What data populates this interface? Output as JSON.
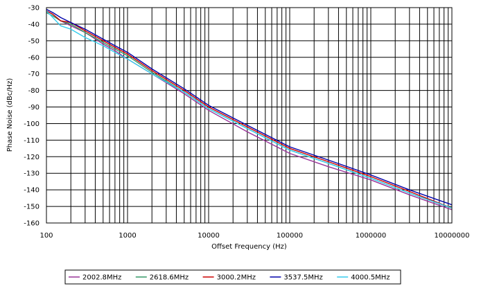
{
  "chart_data": {
    "type": "line",
    "title": "",
    "xlabel": "Offset Frequency (Hz)",
    "ylabel": "Phase Noise (dBc/Hz)",
    "xscale": "log",
    "xlim": [
      100,
      10000000
    ],
    "ylim": [
      -160,
      -30
    ],
    "grid": true,
    "legend_position": "bottom",
    "x_tick_labels": [
      "100",
      "1000",
      "10000",
      "100000",
      "1000000",
      "10000000"
    ],
    "y_tick_labels": [
      "-30",
      "-40",
      "-50",
      "-60",
      "-70",
      "-80",
      "-90",
      "-100",
      "-110",
      "-120",
      "-130",
      "-140",
      "-150",
      "-160"
    ],
    "series": [
      {
        "name": "2002.8MHz",
        "color": "#993399",
        "x": [
          100,
          120,
          150,
          200,
          300,
          500,
          700,
          1000,
          2000,
          5000,
          10000,
          30000,
          100000,
          300000,
          1000000,
          3000000,
          10000000
        ],
        "y": [
          -32,
          -34,
          -38,
          -41,
          -45,
          -52,
          -56,
          -61,
          -70,
          -82,
          -92,
          -105,
          -118,
          -126,
          -134,
          -143,
          -152
        ]
      },
      {
        "name": "2618.6MHz",
        "color": "#339966",
        "x": [
          100,
          120,
          150,
          200,
          300,
          500,
          700,
          1000,
          2000,
          5000,
          10000,
          30000,
          100000,
          300000,
          1000000,
          3000000,
          10000000
        ],
        "y": [
          -33,
          -35,
          -38,
          -40,
          -45,
          -51,
          -55,
          -59,
          -69,
          -81,
          -91,
          -103,
          -116,
          -124,
          -133,
          -142,
          -151
        ]
      },
      {
        "name": "3000.2MHz",
        "color": "#cc0000",
        "x": [
          100,
          120,
          150,
          200,
          300,
          500,
          700,
          1000,
          2000,
          5000,
          10000,
          30000,
          100000,
          300000,
          1000000,
          3000000,
          10000000
        ],
        "y": [
          -32,
          -34,
          -38,
          -39,
          -44,
          -50,
          -54,
          -58,
          -68,
          -80,
          -90,
          -102,
          -115,
          -123,
          -132,
          -141,
          -151
        ]
      },
      {
        "name": "3537.5MHz",
        "color": "#0000aa",
        "x": [
          100,
          120,
          150,
          200,
          300,
          500,
          700,
          1000,
          2000,
          5000,
          10000,
          30000,
          100000,
          300000,
          1000000,
          3000000,
          10000000
        ],
        "y": [
          -31,
          -33,
          -36,
          -39,
          -43,
          -49,
          -53,
          -57,
          -67,
          -79,
          -89,
          -101,
          -114,
          -122,
          -131,
          -140,
          -149
        ]
      },
      {
        "name": "4000.5MHz",
        "color": "#33ccee",
        "x": [
          100,
          120,
          150,
          200,
          300,
          500,
          700,
          1000,
          2000,
          5000,
          10000,
          30000,
          100000,
          300000,
          1000000,
          3000000,
          10000000
        ],
        "y": [
          -32,
          -36,
          -41,
          -43,
          -48,
          -53,
          -57,
          -61,
          -70,
          -81,
          -91,
          -103,
          -116,
          -124,
          -133,
          -142,
          -151
        ]
      }
    ]
  }
}
